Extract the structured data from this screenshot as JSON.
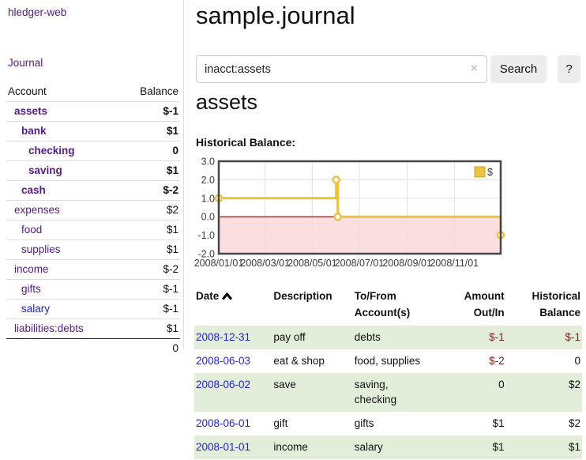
{
  "sidebar": {
    "app_title": "hledger-web",
    "journal_label": "Journal",
    "accounts_table": {
      "account_header": "Account",
      "balance_header": "Balance",
      "rows": [
        {
          "name": "assets",
          "balance": "$-1",
          "depth": 0,
          "bold": true,
          "balance_style": "neg-strong",
          "link_style": "purple"
        },
        {
          "name": "bank",
          "balance": "$1",
          "depth": 1,
          "bold": true,
          "balance_style": "pos",
          "link_style": "purple"
        },
        {
          "name": "checking",
          "balance": "0",
          "depth": 2,
          "bold": true,
          "balance_style": "pos",
          "link_style": "purple"
        },
        {
          "name": "saving",
          "balance": "$1",
          "depth": 2,
          "bold": true,
          "balance_style": "pos",
          "link_style": "purple"
        },
        {
          "name": "cash",
          "balance": "$-2",
          "depth": 1,
          "bold": true,
          "balance_style": "neg-strong",
          "link_style": "purple"
        },
        {
          "name": "expenses",
          "balance": "$2",
          "depth": 0,
          "bold": false,
          "balance_style": "pos",
          "link_style": "purple"
        },
        {
          "name": "food",
          "balance": "$1",
          "depth": 1,
          "bold": false,
          "balance_style": "pos",
          "link_style": "purple"
        },
        {
          "name": "supplies",
          "balance": "$1",
          "depth": 1,
          "bold": false,
          "balance_style": "pos",
          "link_style": "purple"
        },
        {
          "name": "income",
          "balance": "$-2",
          "depth": 0,
          "bold": false,
          "balance_style": "neg-soft",
          "link_style": "purple"
        },
        {
          "name": "gifts",
          "balance": "$-1",
          "depth": 1,
          "bold": false,
          "balance_style": "neg-soft",
          "link_style": "purple"
        },
        {
          "name": "salary",
          "balance": "$-1",
          "depth": 1,
          "bold": false,
          "balance_style": "neg-soft",
          "link_style": "blue"
        },
        {
          "name": "liabilities:debts",
          "balance": "$1",
          "depth": 0,
          "bold": false,
          "balance_style": "pos",
          "link_style": "purple"
        }
      ],
      "total": "0"
    }
  },
  "main": {
    "page_title": "sample.journal",
    "search": {
      "value": "inacct:assets",
      "clear_glyph": "×",
      "search_button_label": "Search",
      "help_button_label": "?"
    },
    "account_heading": "assets",
    "chart_label": "Historical Balance:"
  },
  "chart_data": {
    "type": "line",
    "step": true,
    "title": "Historical Balance",
    "series": [
      {
        "name": "$",
        "color": "#edc240",
        "points": [
          [
            "2008-01-01",
            1
          ],
          [
            "2008-06-01",
            2
          ],
          [
            "2008-06-03",
            0
          ],
          [
            "2008-12-31",
            -1
          ]
        ]
      }
    ],
    "x_start": "2008-01-01",
    "x_end": "2008-12-31",
    "ylim": [
      -2,
      3
    ],
    "yticks": [
      "3.0",
      "2.0",
      "1.0",
      "0.0",
      "-1.0",
      "-2.0"
    ],
    "xticks": [
      "2008/01/01",
      "2008/03/01",
      "2008/05/01",
      "2008/07/01",
      "2008/09/01",
      "2008/11/01"
    ],
    "legend": "$",
    "legend_position": "top-right",
    "grid": true,
    "colors": {
      "line": "#edc240",
      "marker_fill": "#ffffff",
      "negative_region_fill": "#fbdede",
      "zero_line": "#8b0000",
      "gridline": "#e2e2e2",
      "border": "#474747"
    }
  },
  "register_table": {
    "headers": [
      {
        "line1": "Date",
        "line2": "",
        "align": "left",
        "sorted_asc": true
      },
      {
        "line1": "Description",
        "line2": "",
        "align": "left"
      },
      {
        "line1": "To/From",
        "line2": "Account(s)",
        "align": "left"
      },
      {
        "line1": "Amount",
        "line2": "Out/In",
        "align": "right"
      },
      {
        "line1": "Historical",
        "line2": "Balance",
        "align": "right"
      }
    ],
    "rows": [
      {
        "date": "2008-12-31",
        "description": "pay off",
        "accounts": [
          "debts"
        ],
        "amount": "$-1",
        "amount_neg": true,
        "balance": "$-1",
        "balance_neg": true,
        "shaded": true
      },
      {
        "date": "2008-06-03",
        "description": "eat & shop",
        "accounts": [
          "food, supplies"
        ],
        "amount": "$-2",
        "amount_neg": true,
        "balance": "0",
        "balance_neg": false,
        "shaded": false
      },
      {
        "date": "2008-06-02",
        "description": "save",
        "accounts": [
          "saving,",
          "checking"
        ],
        "amount": "0",
        "amount_neg": false,
        "balance": "$2",
        "balance_neg": false,
        "shaded": true
      },
      {
        "date": "2008-06-01",
        "description": "gift",
        "accounts": [
          "gifts"
        ],
        "amount": "$1",
        "amount_neg": false,
        "balance": "$2",
        "balance_neg": false,
        "shaded": false
      },
      {
        "date": "2008-01-01",
        "description": "income",
        "accounts": [
          "salary"
        ],
        "amount": "$1",
        "amount_neg": false,
        "balance": "$1",
        "balance_neg": false,
        "shaded": true
      }
    ]
  }
}
